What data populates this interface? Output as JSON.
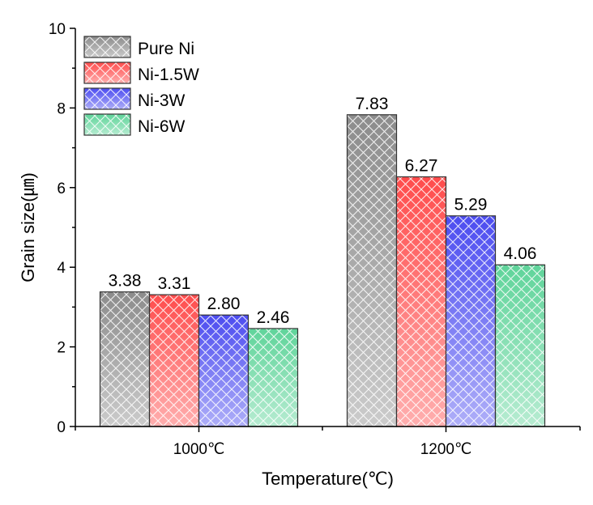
{
  "chart_data": {
    "type": "bar",
    "xlabel": "Temperature(℃)",
    "ylabel": "Grain size(㎛)",
    "categories": [
      "1000℃",
      "1200℃"
    ],
    "ylim": [
      0,
      10
    ],
    "yticks": [
      0,
      2,
      4,
      6,
      8,
      10
    ],
    "grid": false,
    "legend_position": "top-left",
    "series": [
      {
        "name": "Pure Ni",
        "values": [
          3.38,
          7.83
        ],
        "labels": [
          "3.38",
          "7.83"
        ],
        "color": "#8c8c8c"
      },
      {
        "name": "Ni-1.5W",
        "values": [
          3.31,
          6.27
        ],
        "labels": [
          "3.31",
          "6.27"
        ],
        "color": "#ff4c4c"
      },
      {
        "name": "Ni-3W",
        "values": [
          2.8,
          5.29
        ],
        "labels": [
          "2.80",
          "5.29"
        ],
        "color": "#4c4cf0"
      },
      {
        "name": "Ni-6W",
        "values": [
          2.46,
          4.06
        ],
        "labels": [
          "2.46",
          "4.06"
        ],
        "color": "#5fd49a"
      }
    ]
  }
}
